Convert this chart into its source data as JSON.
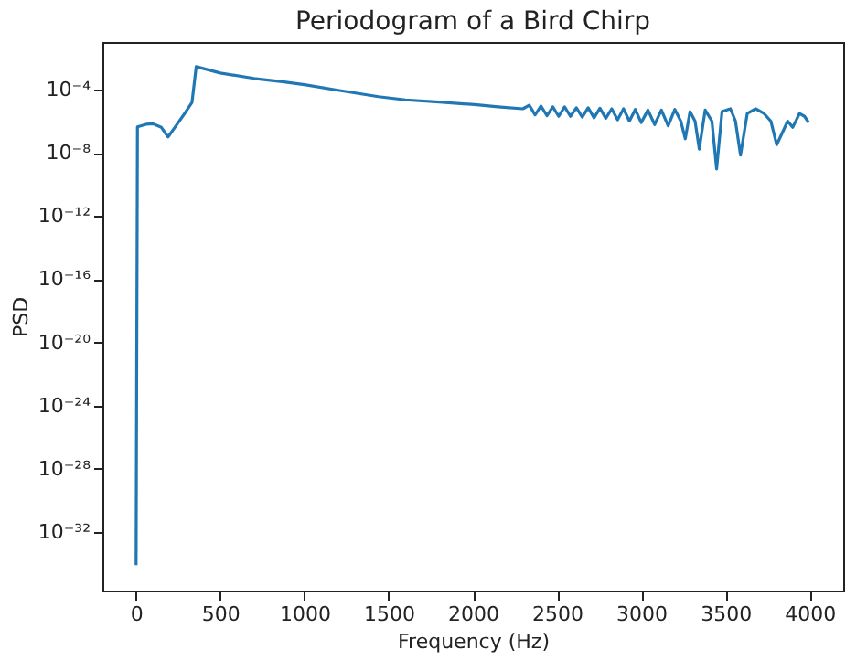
{
  "chart_data": {
    "type": "line",
    "title": "Periodogram of a Bird Chirp",
    "xlabel": "Frequency (Hz)",
    "ylabel": "PSD",
    "log": "y",
    "grid": false,
    "legend": false,
    "xlim": [
      -200,
      4200
    ],
    "xticks": [
      0,
      500,
      1000,
      1500,
      2000,
      2500,
      3000,
      3500,
      4000
    ],
    "ylim": [
      2e-36,
      0.1
    ],
    "yticks": [
      {
        "value": 1e-32,
        "label": "10⁻³²"
      },
      {
        "value": 1e-28,
        "label": "10⁻²⁸"
      },
      {
        "value": 1e-24,
        "label": "10⁻²⁴"
      },
      {
        "value": 1e-20,
        "label": "10⁻²⁰"
      },
      {
        "value": 1e-16,
        "label": "10⁻¹⁶"
      },
      {
        "value": 1e-12,
        "label": "10⁻¹²"
      },
      {
        "value": 1e-08,
        "label": "10⁻⁸"
      },
      {
        "value": 0.0001,
        "label": "10⁻⁴"
      }
    ],
    "series": [
      {
        "color": "#1f77b4",
        "x": [
          0,
          8,
          60,
          100,
          150,
          190,
          230,
          290,
          332,
          357,
          500,
          700,
          868,
          1000,
          1200,
          1440,
          1600,
          1800,
          2010,
          2150,
          2297,
          2335,
          2370,
          2405,
          2440,
          2475,
          2510,
          2545,
          2580,
          2615,
          2650,
          2685,
          2720,
          2755,
          2790,
          2825,
          2860,
          2895,
          2930,
          2965,
          3000,
          3040,
          3080,
          3120,
          3160,
          3200,
          3235,
          3262,
          3290,
          3320,
          3345,
          3380,
          3420,
          3448,
          3480,
          3530,
          3560,
          3590,
          3630,
          3680,
          3730,
          3770,
          3805,
          3840,
          3870,
          3900,
          3940,
          3970,
          3995
        ],
        "values": [
          8e-35,
          4.3e-07,
          6.3e-07,
          6.8e-07,
          4e-07,
          1e-07,
          4e-07,
          3.2e-06,
          1.5e-05,
          0.0028,
          0.0011,
          0.0005,
          0.00031,
          0.0002,
          8.9e-05,
          3.5e-05,
          2.2e-05,
          1.6e-05,
          1.1e-05,
          7.9e-06,
          6e-06,
          1e-05,
          2.5e-06,
          9e-06,
          2.2e-06,
          8e-06,
          2e-06,
          8e-06,
          2e-06,
          7e-06,
          1.8e-06,
          7e-06,
          1.6e-06,
          6.5e-06,
          1.5e-06,
          6e-06,
          1.2e-06,
          6e-06,
          1e-06,
          5.5e-06,
          8e-07,
          5e-06,
          6e-07,
          5e-06,
          5e-07,
          5.5e-06,
          1e-06,
          7.6e-08,
          4e-06,
          1e-06,
          1.7e-08,
          5e-06,
          1e-06,
          9.3e-10,
          4e-06,
          6e-06,
          1e-06,
          7e-09,
          3e-06,
          6e-06,
          3e-06,
          1e-06,
          3.2e-08,
          2e-07,
          1e-06,
          4e-07,
          3e-06,
          2e-06,
          8e-07
        ]
      }
    ]
  }
}
